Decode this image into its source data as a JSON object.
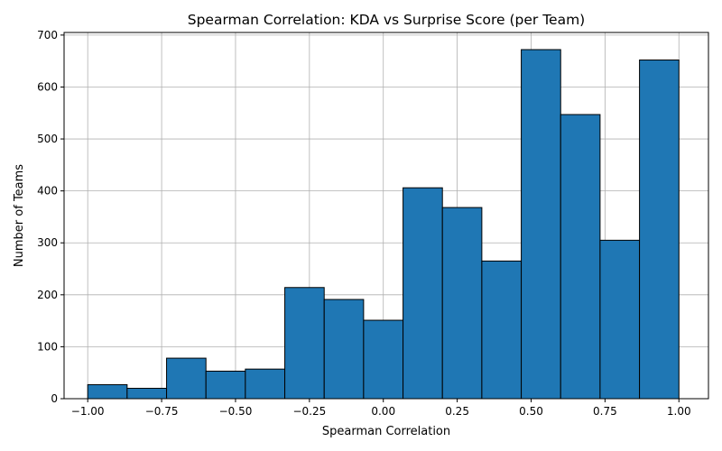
{
  "chart_data": {
    "type": "bar",
    "title": "Spearman Correlation: KDA vs Surprise Score (per Team)",
    "xlabel": "Spearman Correlation",
    "ylabel": "Number of Teams",
    "xlim": [
      -1.08,
      1.1
    ],
    "ylim": [
      0,
      705
    ],
    "xticks": [
      -1.0,
      -0.75,
      -0.5,
      -0.25,
      0.0,
      0.25,
      0.5,
      0.75,
      1.0
    ],
    "xtick_labels": [
      "−1.00",
      "−0.75",
      "−0.50",
      "−0.25",
      "0.00",
      "0.25",
      "0.50",
      "0.75",
      "1.00"
    ],
    "yticks": [
      0,
      100,
      200,
      300,
      400,
      500,
      600,
      700
    ],
    "ytick_labels": [
      "0",
      "100",
      "200",
      "300",
      "400",
      "500",
      "600",
      "700"
    ],
    "grid": true,
    "bin_edges": [
      -1.0,
      -0.8667,
      -0.7333,
      -0.6,
      -0.4667,
      -0.3333,
      -0.2,
      -0.0667,
      0.0667,
      0.2,
      0.3333,
      0.4667,
      0.6,
      0.7333,
      0.8667,
      1.0
    ],
    "values": [
      27,
      20,
      78,
      53,
      57,
      214,
      191,
      151,
      406,
      368,
      265,
      672,
      547,
      305,
      652
    ],
    "bar_color": "#1f77b4",
    "edge_color": "#000000"
  }
}
